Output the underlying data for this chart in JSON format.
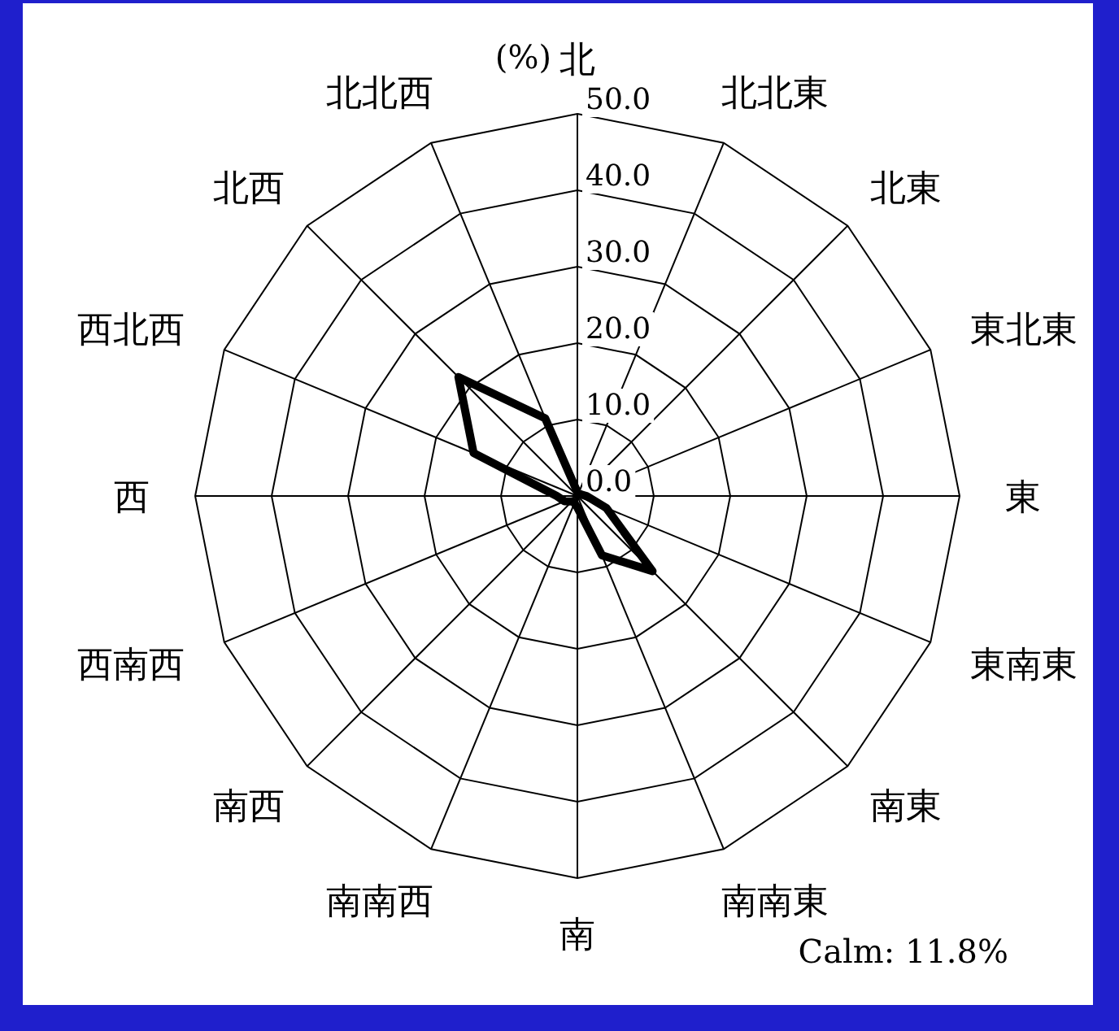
{
  "chart_data": {
    "type": "radar",
    "ylabel": "(%)",
    "categories": [
      "北",
      "北北東",
      "北東",
      "東北東",
      "東",
      "東南東",
      "南東",
      "南南東",
      "南",
      "南南西",
      "南西",
      "西南西",
      "西",
      "西北西",
      "北西",
      "北北西"
    ],
    "series": [
      {
        "color": "#000000",
        "values": [
          0.5,
          0.3,
          0.3,
          0.5,
          1.2,
          4.1,
          13.9,
          8.4,
          1.5,
          1.0,
          1.0,
          1.8,
          2.7,
          14.7,
          22.0,
          11.0
        ]
      }
    ],
    "ylim": [
      0,
      50
    ],
    "yticks": [
      {
        "value": 0,
        "label": "0.0"
      },
      {
        "value": 10,
        "label": "10.0"
      },
      {
        "value": 20,
        "label": "20.0"
      },
      {
        "value": 30,
        "label": "30.0"
      },
      {
        "value": 40,
        "label": "40.0"
      },
      {
        "value": 50,
        "label": "50.0"
      }
    ],
    "grid": true,
    "annotations": [
      "Calm: 11.8%"
    ]
  }
}
